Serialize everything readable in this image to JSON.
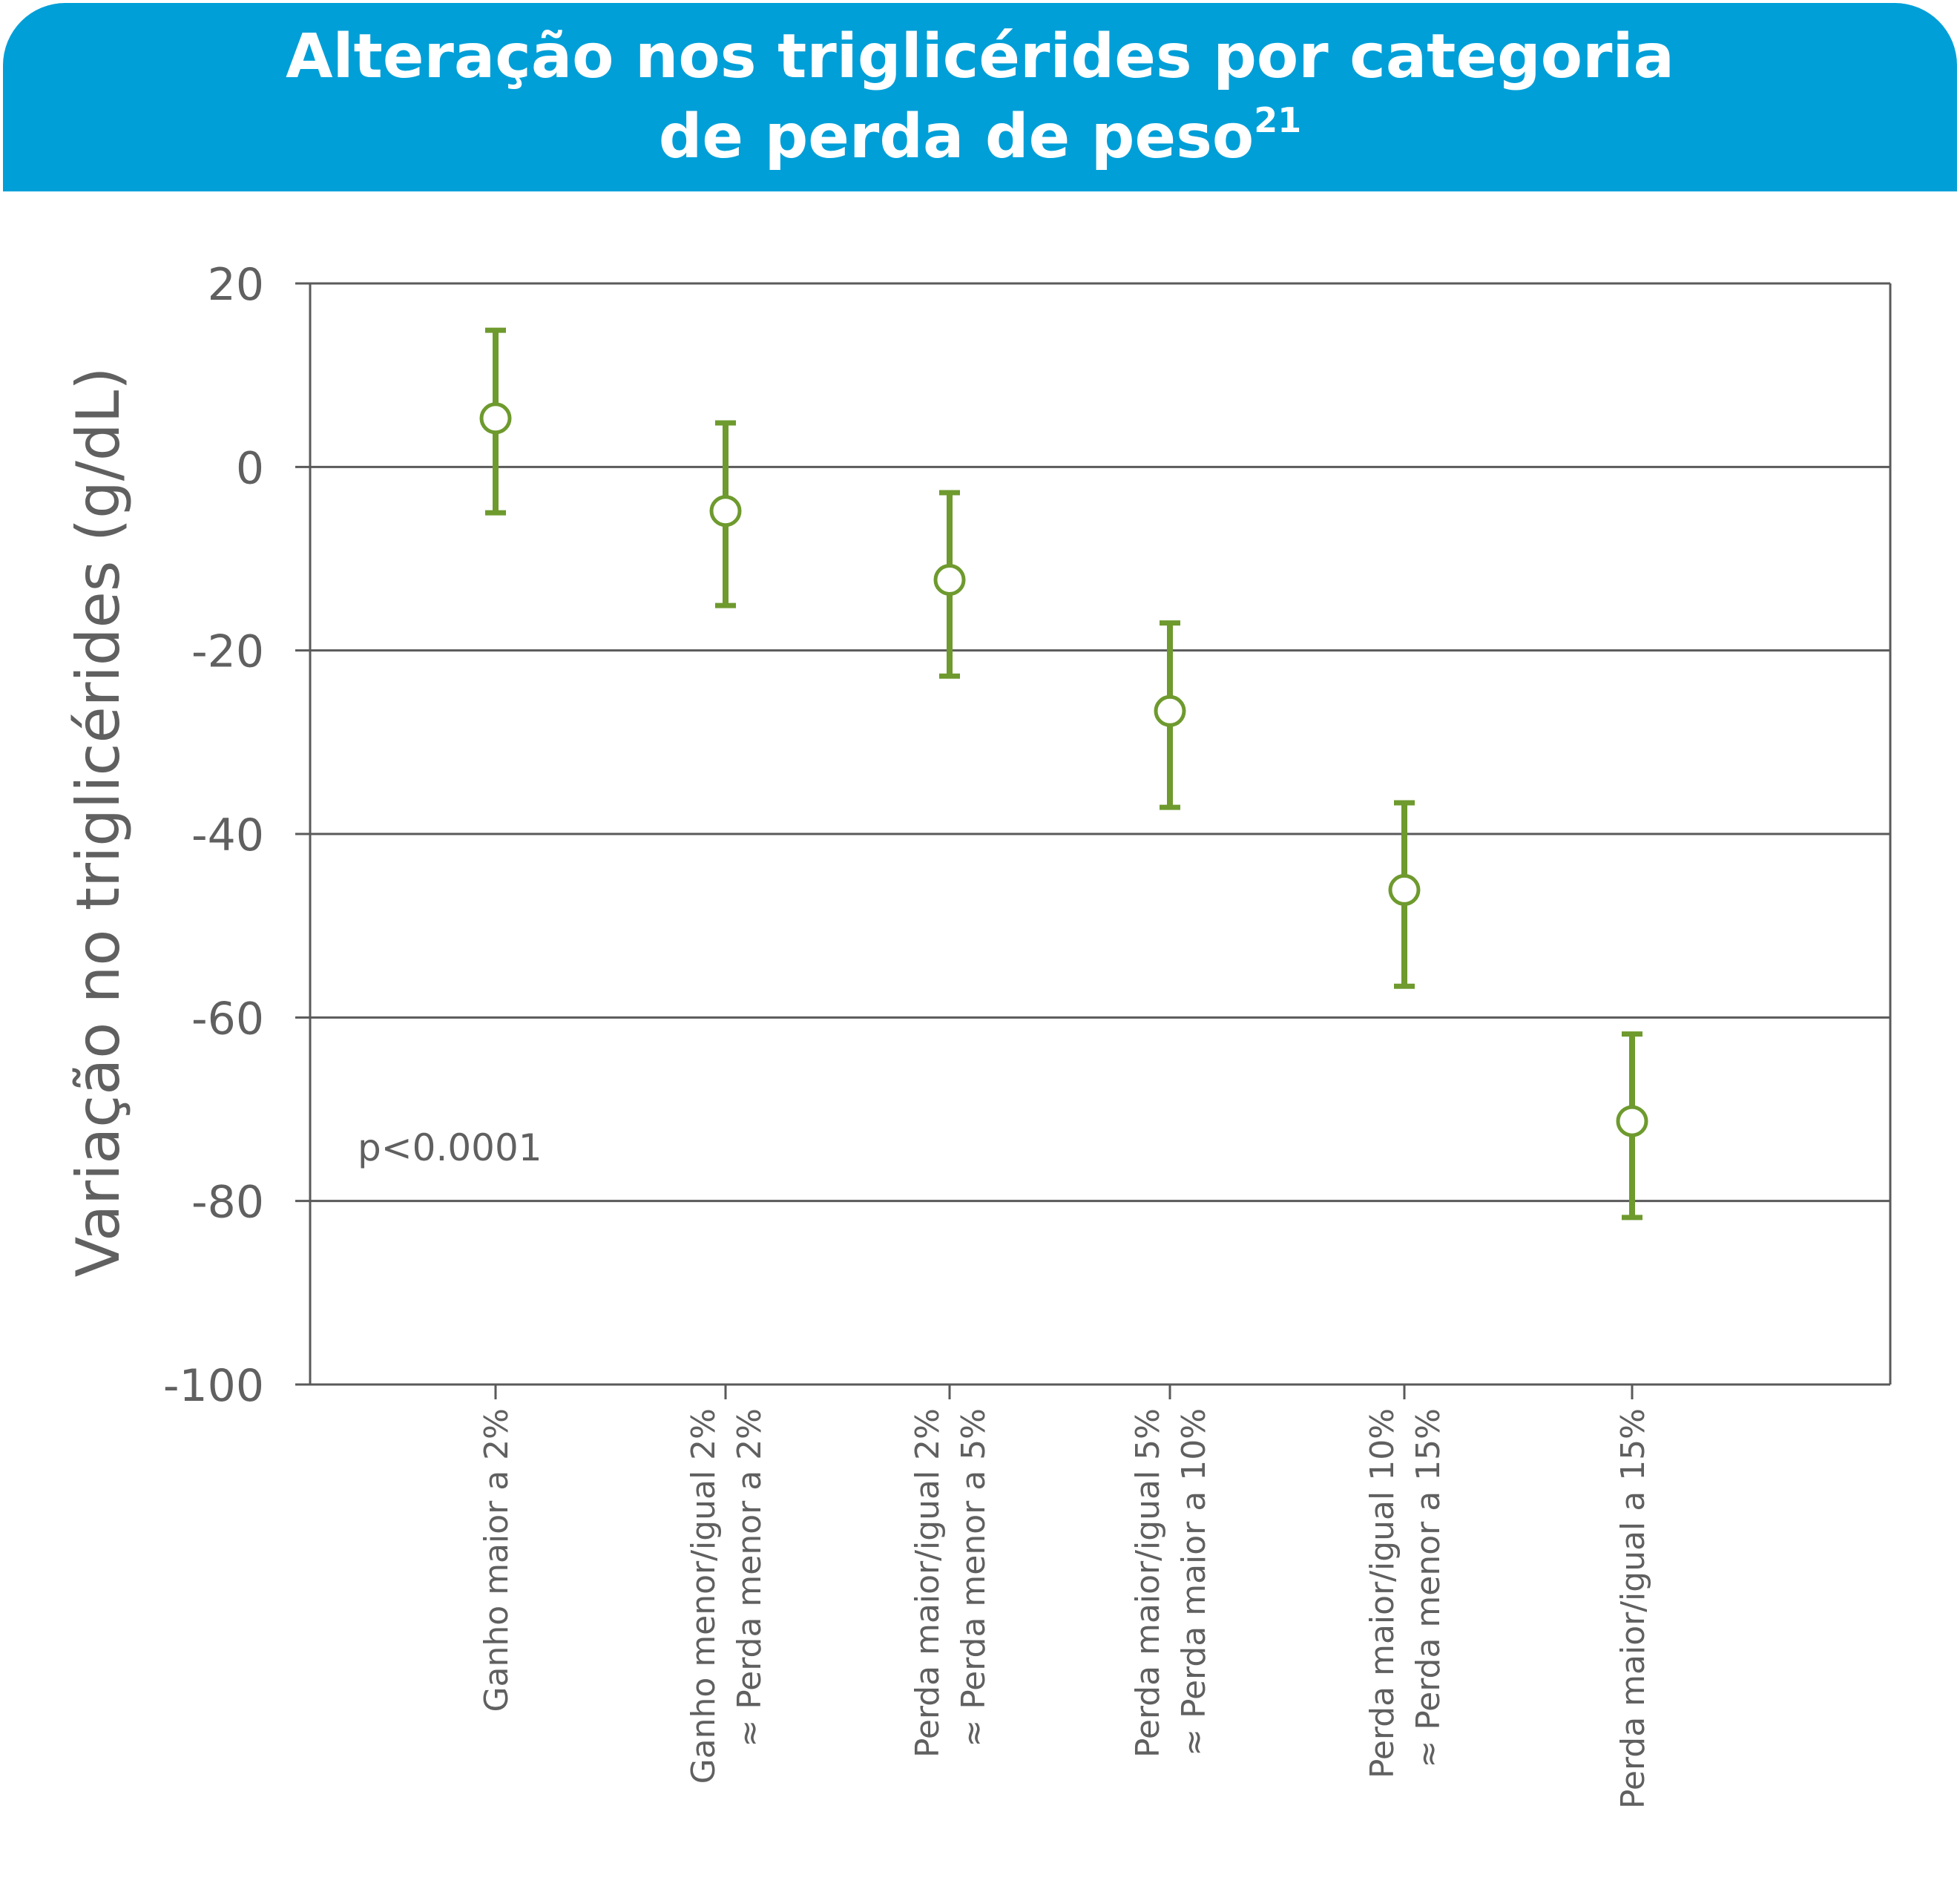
{
  "title": {
    "line1": "Alteração nos triglicérides por categoria",
    "line2": "de perda de peso",
    "superscript": "21"
  },
  "colors": {
    "banner": "#009fd8",
    "series": "#6e9a2e",
    "axis": "#5a5a5a",
    "text": "#606060"
  },
  "chart_data": {
    "type": "scatter",
    "ylabel": "Variação no triglicérides (g/dL)",
    "ylim": [
      -100,
      20
    ],
    "yticks": [
      20,
      0,
      -20,
      -40,
      -60,
      -80,
      -100
    ],
    "grid": true,
    "annotation": "p<0.0001",
    "categories": [
      [
        "Ganho maior a 2%"
      ],
      [
        "Ganho menor/igual 2%",
        "≈ Perda menor a 2%"
      ],
      [
        "Perda maior/igual 2%",
        "≈ Perda menor a 5%"
      ],
      [
        "Perda maior/igual 5%",
        "≈ Perda maior a 10%"
      ],
      [
        "Perda maior/igual 10%",
        "≈ Perda menor a 15%"
      ],
      [
        "Perda maior/igual a 15%"
      ]
    ],
    "points": [
      {
        "y": 5.3,
        "low": -5.0,
        "high": 14.9
      },
      {
        "y": -4.8,
        "low": -15.1,
        "high": 4.8
      },
      {
        "y": -12.3,
        "low": -22.8,
        "high": -2.8
      },
      {
        "y": -26.6,
        "low": -37.1,
        "high": -17.0
      },
      {
        "y": -46.1,
        "low": -56.6,
        "high": -36.6
      },
      {
        "y": -71.3,
        "low": -81.8,
        "high": -61.8
      }
    ]
  }
}
